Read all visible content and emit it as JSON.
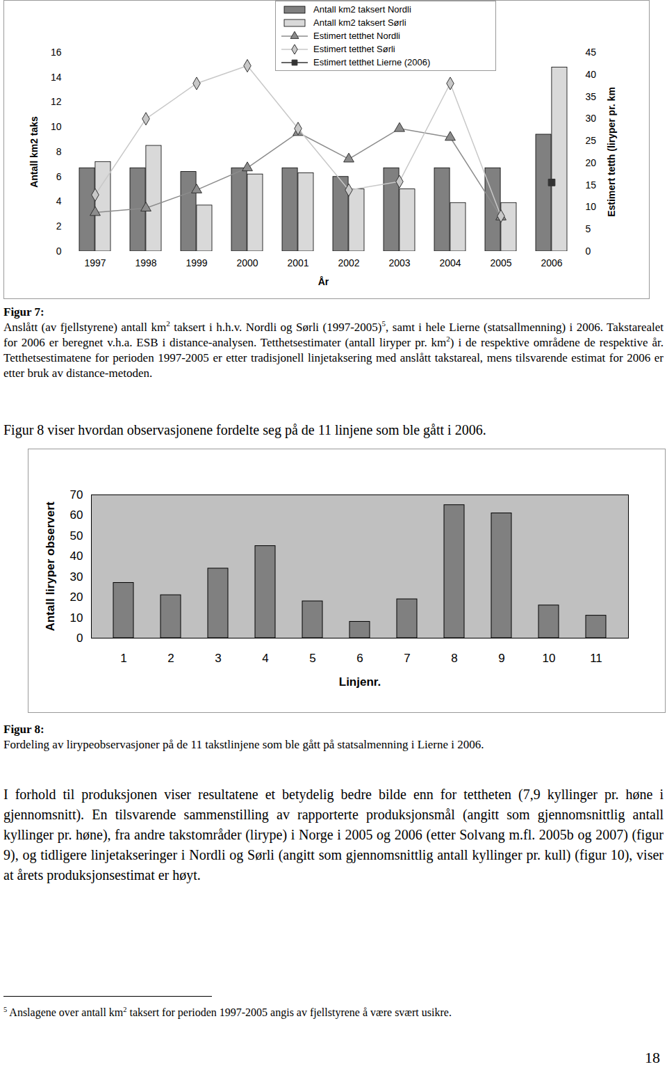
{
  "chart_data": [
    {
      "type": "bar",
      "x_label": "År",
      "y_label": "Antall km2 taks",
      "y2_label": "Estimert tetth (liryper pr. km",
      "categories": [
        "1997",
        "1998",
        "1999",
        "2000",
        "2001",
        "2002",
        "2003",
        "2004",
        "2005",
        "2006"
      ],
      "ylim": [
        0,
        16
      ],
      "yticks": [
        0,
        2,
        4,
        6,
        8,
        10,
        12,
        14,
        16
      ],
      "y2lim": [
        0,
        45
      ],
      "y2ticks": [
        0,
        5,
        10,
        15,
        20,
        25,
        30,
        35,
        40,
        45
      ],
      "legend": "top",
      "series": [
        {
          "name": "Antall km2 taksert Nordli",
          "type": "bar",
          "color": "#808080",
          "values": [
            6.7,
            6.7,
            6.4,
            6.7,
            6.7,
            6.0,
            6.7,
            6.7,
            6.7,
            9.4
          ]
        },
        {
          "name": "Antall km2 taksert Sørli",
          "type": "bar",
          "color": "#d9d9d9",
          "values": [
            7.2,
            8.5,
            3.7,
            6.2,
            6.3,
            5.0,
            5.0,
            3.9,
            3.9,
            14.8
          ]
        },
        {
          "name": "Estimert tetthet Nordli",
          "type": "line",
          "axis": "y2",
          "color": "#8c8c8c",
          "marker": "triangle",
          "values": [
            8.8,
            9.8,
            13.9,
            18.9,
            26.9,
            20.9,
            27.8,
            25.8,
            7.8,
            null
          ]
        },
        {
          "name": "Estimert tetthet Sørli",
          "type": "line",
          "axis": "y2",
          "color": "#c8c8c8",
          "marker": "diamond",
          "values": [
            12.8,
            30.0,
            38.0,
            42.0,
            27.8,
            13.9,
            15.8,
            38.0,
            8.0,
            null
          ]
        },
        {
          "name": "Estimert tetthet Lierne (2006)",
          "type": "line",
          "axis": "y2",
          "color": "#333333",
          "marker": "square",
          "values": [
            null,
            null,
            null,
            null,
            null,
            null,
            null,
            null,
            null,
            15.6
          ]
        }
      ]
    },
    {
      "type": "bar",
      "x_label": "Linjenr.",
      "y_label": "Antall liryper observert",
      "categories": [
        "1",
        "2",
        "3",
        "4",
        "5",
        "6",
        "7",
        "8",
        "9",
        "10",
        "11"
      ],
      "values": [
        27,
        21,
        34,
        45,
        18,
        8,
        19,
        65,
        61,
        16,
        11
      ],
      "color": "#808080",
      "ylim": [
        0,
        70
      ],
      "yticks": [
        0,
        10,
        20,
        30,
        40,
        50,
        60,
        70
      ]
    }
  ],
  "document": {
    "figure_captions": [
      {
        "label": "Figur 7:",
        "runs": [
          {
            "text": "Anslått (av fjellstyrene) antall km"
          },
          {
            "text": "2",
            "sup": true
          },
          {
            "text": " taksert i h.h.v. Nordli og Sørli (1997-2005)"
          },
          {
            "text": "5",
            "sup": true
          },
          {
            "text": ", samt i hele Lierne (statsallmenning) i 2006. Takstarealet for 2006 er beregnet v.h.a. ESB i distance-analysen. Tetthetsestimater (antall liryper pr. km"
          },
          {
            "text": "2",
            "sup": true
          },
          {
            "text": ") i de respektive områdene de respektive år. Tetthetsestimatene for perioden 1997-2005 er etter tradisjonell linjetaksering med anslått takstareal, mens tilsvarende estimat for 2006 er etter bruk av distance-metoden."
          }
        ]
      },
      {
        "label": "Figur 8:",
        "runs": [
          {
            "text": "Fordeling av lirypeobservasjoner på de 11 takstlinjene som ble gått på statsalmenning i Lierne i 2006."
          }
        ]
      }
    ],
    "paragraphs": [
      {
        "runs": [
          {
            "text": "Figur 8 viser hvordan observasjonene fordelte seg på de 11 linjene som ble gått i 2006."
          }
        ]
      },
      {
        "runs": [
          {
            "text": "I forhold til produksjonen viser resultatene et betydelig bedre bilde enn for tettheten (7,9 kyllinger pr. høne i gjennomsnitt). En tilsvarende sammenstilling av rapporterte produksjonsmål (angitt som gjennomsnittlig antall kyllinger pr. høne), fra andre takstområder (lirype) i Norge i 2005 og 2006 (etter Solvang m.fl. 2005b og 2007) (figur 9), og tidligere linjetakseringer i Nordli og Sørli (angitt som gjennomsnittlig antall kyllinger pr. kull) (figur 10), viser at årets produksjonsestimat er høyt."
          }
        ]
      }
    ],
    "footnote": {
      "runs": [
        {
          "text": "5",
          "sup": true
        },
        {
          "text": " Anslagene over antall km"
        },
        {
          "text": "2",
          "sup": true
        },
        {
          "text": " taksert for perioden 1997-2005 angis av fjellstyrene å være svært usikre."
        }
      ]
    },
    "page_number": "18"
  }
}
